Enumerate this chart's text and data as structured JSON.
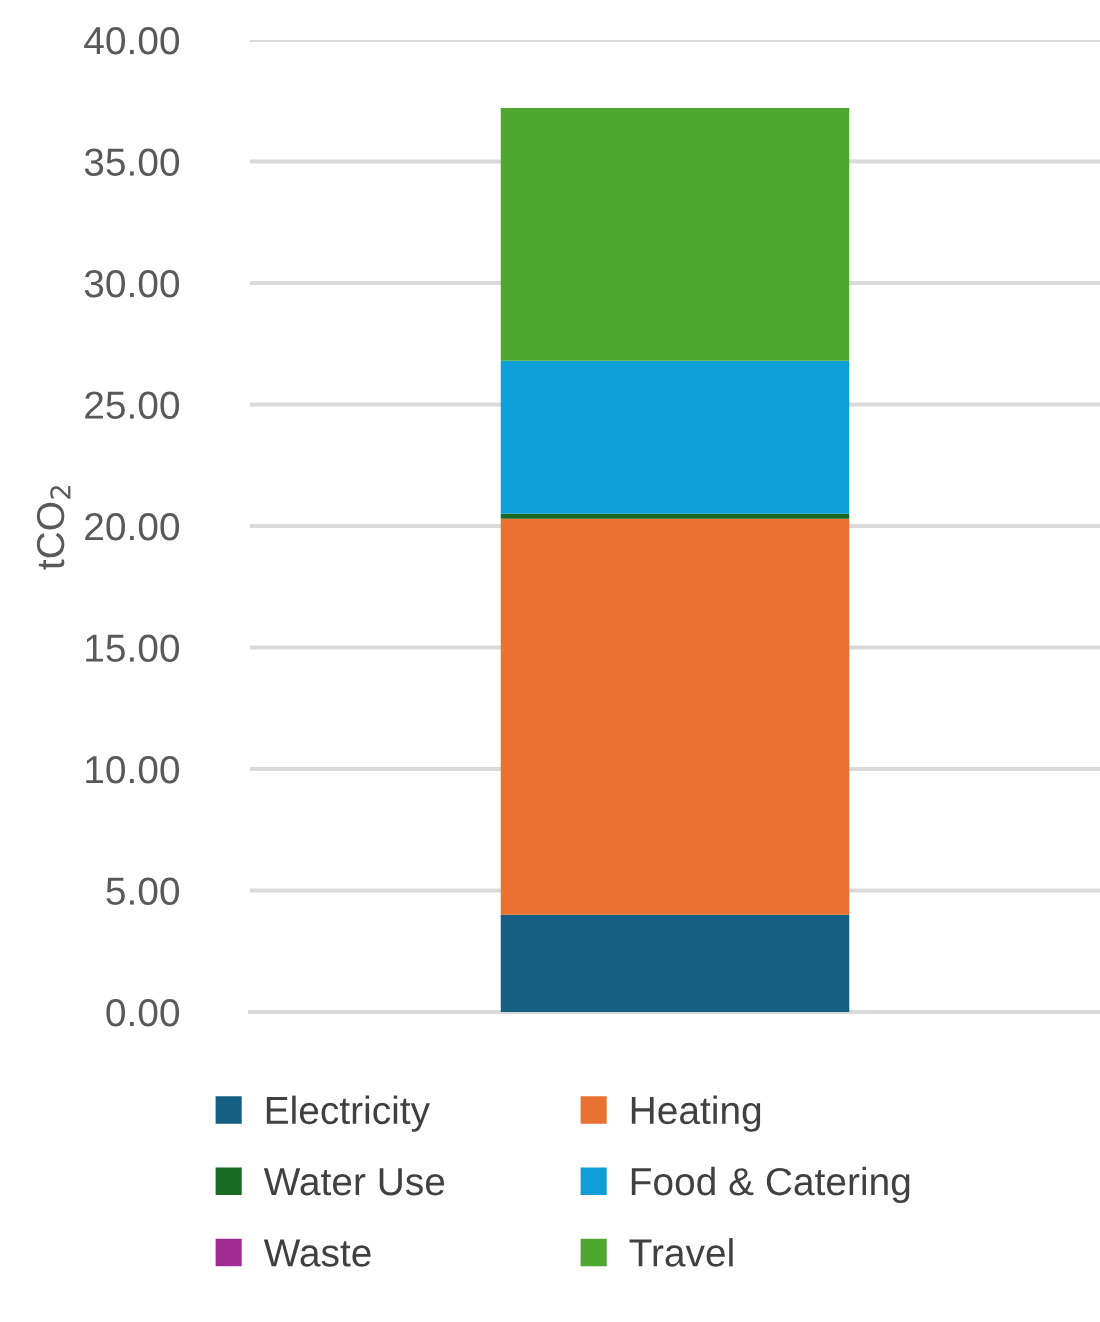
{
  "chart_data": {
    "type": "bar",
    "stacked": true,
    "ylabel": "tCO$_{2}$",
    "categories": [
      null
    ],
    "series": [
      {
        "name": "Electricity",
        "color": "#156082",
        "values": [
          4.0
        ]
      },
      {
        "name": "Heating",
        "color": "#e97132",
        "values": [
          16.3
        ]
      },
      {
        "name": "Water Use",
        "color": "#196b24",
        "values": [
          0.2
        ]
      },
      {
        "name": "Food & Catering",
        "color": "#0f9ed5",
        "values": [
          6.3
        ]
      },
      {
        "name": "Waste",
        "color": "#a02b93",
        "values": [
          0
        ]
      },
      {
        "name": "Travel",
        "color": "#4ea72e",
        "values": [
          10.4
        ]
      }
    ],
    "ylim": [
      0,
      40
    ],
    "yticks": [
      {
        "value": 0,
        "label": "0.00"
      },
      {
        "value": 5,
        "label": "5.00"
      },
      {
        "value": 10,
        "label": "10.00"
      },
      {
        "value": 15,
        "label": "15.00"
      },
      {
        "value": 20,
        "label": "20.00"
      },
      {
        "value": 25,
        "label": "25.00"
      },
      {
        "value": 30,
        "label": "30.00"
      },
      {
        "value": 35,
        "label": "35.00"
      },
      {
        "value": 40,
        "label": "40.00"
      }
    ],
    "grid": "y",
    "legend": "bottom"
  }
}
